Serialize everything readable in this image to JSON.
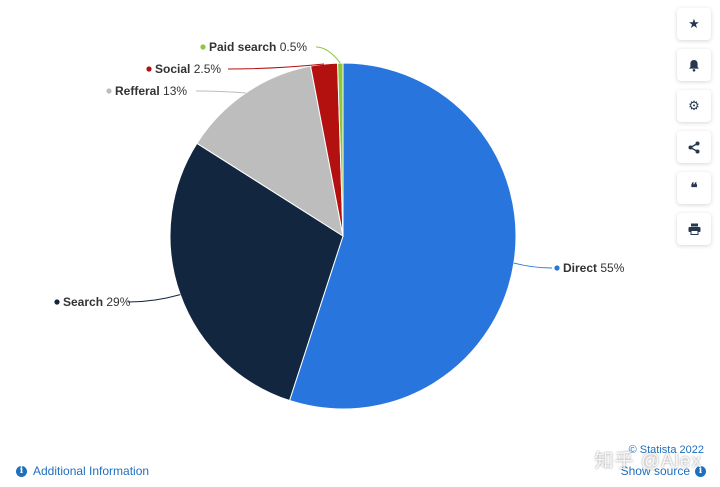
{
  "chart_data": {
    "type": "pie",
    "series": [
      {
        "name": "Direct",
        "value": 55,
        "label": "55%",
        "color": "#2876dd"
      },
      {
        "name": "Search",
        "value": 29,
        "label": "29%",
        "color": "#12263f"
      },
      {
        "name": "Refferal",
        "value": 13,
        "label": "13%",
        "color": "#bdbdbd"
      },
      {
        "name": "Social",
        "value": 2.5,
        "label": "2.5%",
        "color": "#b31010"
      },
      {
        "name": "Paid search",
        "value": 0.5,
        "label": "0.5%",
        "color": "#8dc63f"
      }
    ],
    "legend": "none (labels on slices)"
  },
  "toolbar": {
    "icons": [
      "star-icon",
      "bell-icon",
      "gear-icon",
      "share-icon",
      "quote-icon",
      "print-icon"
    ]
  },
  "footer": {
    "additional_info": "Additional Information",
    "credit": "© Statista 2022",
    "show_source": "Show source"
  },
  "watermark": "知乎 @Alex"
}
